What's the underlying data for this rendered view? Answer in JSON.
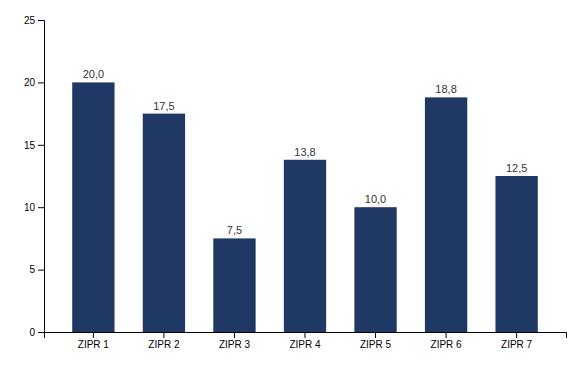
{
  "chart_data": {
    "type": "bar",
    "categories": [
      "ZIPR 1",
      "ZIPR 2",
      "ZIPR 3",
      "ZIPR 4",
      "ZIPR 5",
      "ZIPR 6",
      "ZIPR 7"
    ],
    "values": [
      20.0,
      17.5,
      7.5,
      13.8,
      10.0,
      18.8,
      12.5
    ],
    "value_labels": [
      "20,0",
      "17,5",
      "7,5",
      "13,8",
      "10,0",
      "18,8",
      "12,5"
    ],
    "data_labels": true,
    "color": "#1F3864",
    "ylim": [
      0,
      25
    ],
    "yticks": [
      0,
      5,
      10,
      15,
      20,
      25
    ],
    "grid": false
  }
}
